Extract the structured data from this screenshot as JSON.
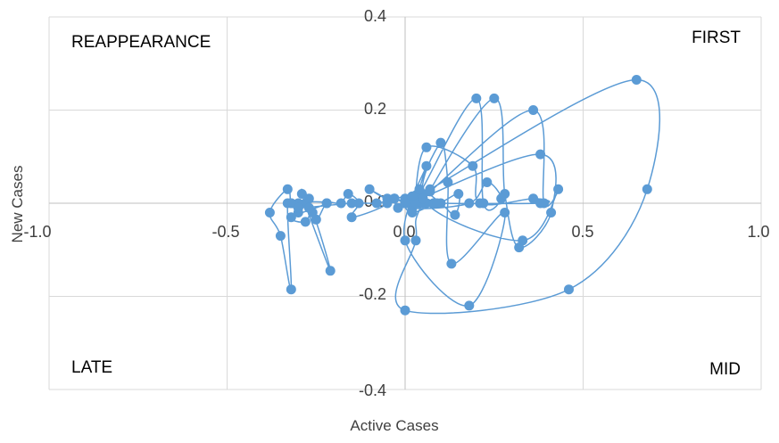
{
  "chart_data": {
    "type": "scatter",
    "title": "",
    "xlabel": "Active Cases",
    "ylabel": "New Cases",
    "xlim": [
      -1.0,
      1.0
    ],
    "ylim": [
      -0.4,
      0.4
    ],
    "xticks": [
      "-1.0",
      "-0.5",
      "0.0",
      "0.5",
      "1.0"
    ],
    "yticks": [
      "0.4",
      "0.2",
      "0.0",
      "-0.2",
      "-0.4"
    ],
    "grid": true,
    "connected": true,
    "series_color": "#5b9bd5",
    "quadrant_labels": {
      "top_left": "REAPPEARANCE",
      "top_right": "FIRST",
      "bottom_left": "LATE",
      "bottom_right": "MID"
    },
    "points": [
      [
        0.0,
        0.0
      ],
      [
        0.02,
        0.01
      ],
      [
        0.04,
        0.0
      ],
      [
        0.05,
        0.02
      ],
      [
        0.07,
        0.03
      ],
      [
        0.65,
        0.265
      ],
      [
        0.68,
        0.03
      ],
      [
        0.46,
        -0.185
      ],
      [
        0.0,
        -0.23
      ],
      [
        0.03,
        -0.08
      ],
      [
        0.05,
        0.0
      ],
      [
        0.25,
        0.225
      ],
      [
        0.28,
        0.02
      ],
      [
        0.32,
        -0.095
      ],
      [
        0.41,
        -0.02
      ],
      [
        0.38,
        0.105
      ],
      [
        0.01,
        0.0
      ],
      [
        0.04,
        0.02
      ],
      [
        0.2,
        0.225
      ],
      [
        0.22,
        0.0
      ],
      [
        0.27,
        0.01
      ],
      [
        0.23,
        0.045
      ],
      [
        0.18,
        0.0
      ],
      [
        0.02,
        -0.01
      ],
      [
        0.07,
        0.025
      ],
      [
        0.36,
        0.2
      ],
      [
        0.39,
        0.0
      ],
      [
        0.43,
        0.03
      ],
      [
        0.33,
        -0.08
      ],
      [
        0.06,
        0.0
      ],
      [
        0.1,
        0.13
      ],
      [
        0.12,
        0.045
      ],
      [
        0.13,
        -0.13
      ],
      [
        0.28,
        -0.02
      ],
      [
        0.18,
        -0.22
      ],
      [
        0.0,
        -0.08
      ],
      [
        0.06,
        0.08
      ],
      [
        0.03,
        0.01
      ],
      [
        0.06,
        0.12
      ],
      [
        0.19,
        0.08
      ],
      [
        0.21,
        0.0
      ],
      [
        0.36,
        0.01
      ],
      [
        0.38,
        0.0
      ],
      [
        0.03,
        0.0
      ],
      [
        0.0,
        0.0
      ],
      [
        -0.03,
        0.01
      ],
      [
        -0.02,
        -0.01
      ],
      [
        0.0,
        0.01
      ],
      [
        0.05,
        0.01
      ],
      [
        0.08,
        0.0
      ],
      [
        0.02,
        -0.02
      ],
      [
        0.0,
        0.0
      ],
      [
        0.04,
        0.03
      ],
      [
        0.1,
        0.0
      ],
      [
        0.14,
        -0.025
      ],
      [
        0.15,
        0.02
      ],
      [
        0.09,
        0.0
      ],
      [
        0.02,
        0.015
      ],
      [
        -0.05,
        0.01
      ],
      [
        -0.1,
        0.03
      ],
      [
        -0.05,
        0.0
      ],
      [
        -0.15,
        -0.03
      ],
      [
        -0.13,
        0.0
      ],
      [
        -0.16,
        0.02
      ],
      [
        -0.18,
        0.0
      ],
      [
        -0.22,
        0.0
      ],
      [
        -0.25,
        -0.035
      ],
      [
        -0.28,
        0.0
      ],
      [
        -0.27,
        0.01
      ],
      [
        -0.29,
        0.02
      ],
      [
        -0.21,
        -0.145
      ],
      [
        -0.26,
        -0.02
      ],
      [
        -0.3,
        0.0
      ],
      [
        -0.22,
        0.0
      ],
      [
        -0.32,
        -0.03
      ],
      [
        -0.28,
        -0.04
      ],
      [
        -0.27,
        -0.01
      ],
      [
        -0.32,
        0.0
      ],
      [
        -0.3,
        -0.02
      ],
      [
        -0.33,
        0.0
      ],
      [
        -0.32,
        -0.185
      ],
      [
        -0.35,
        -0.07
      ],
      [
        -0.38,
        -0.02
      ],
      [
        -0.33,
        0.03
      ],
      [
        -0.32,
        0.0
      ],
      [
        -0.3,
        -0.01
      ],
      [
        -0.15,
        0.0
      ],
      [
        -0.08,
        0.0
      ],
      [
        -0.03,
        0.01
      ],
      [
        0.0,
        0.0
      ]
    ]
  }
}
